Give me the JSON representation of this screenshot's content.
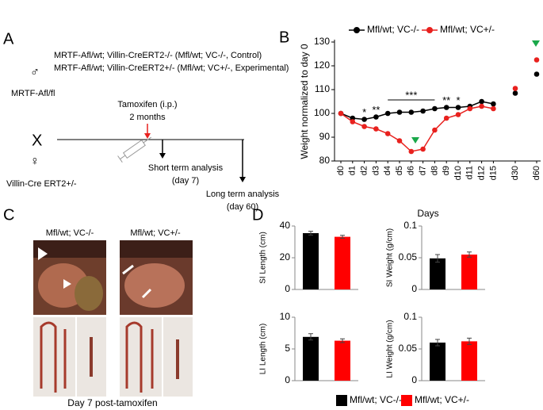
{
  "panel_labels": [
    "A",
    "B",
    "C",
    "D"
  ],
  "panel_a": {
    "cross_lines": [
      {
        "text": "MRTF-Afl/wt; Villin-CreERT2-/- (Mfl/wt; VC-/-, Control)",
        "color": "#000000"
      },
      {
        "text": "MRTF-Afl/wt; Villin-CreERT2+/- (Mfl/wt; VC+/-, Experimental)",
        "color": "#e8211e"
      }
    ],
    "male_symbol": "♂",
    "female_symbol": "♀",
    "male_parent": "MRTF-Afl/fl",
    "cross": "X",
    "female_parent": "Villin-Cre ERT2+/-",
    "treatment": [
      "Tamoxifen (i.p.)",
      "2 months"
    ],
    "short_term": [
      "Short term analysis",
      "(day 7)"
    ],
    "long_term": [
      "Long term analysis",
      "(day 60)"
    ]
  },
  "panel_c": {
    "headers": [
      {
        "text": "Mfl/wt; VC-/-",
        "color": "#000000"
      },
      {
        "text": "Mfl/wt; VC+/-",
        "color": "#e8211e"
      }
    ],
    "caption": "Day 7 post-tamoxifen"
  },
  "panel_d_legend": [
    {
      "text": "Mfl/wt; VC-/-",
      "color": "#000000"
    },
    {
      "text": "Mfl/wt; VC+/-",
      "color": "#ff0000"
    }
  ],
  "chart_data": [
    {
      "type": "line",
      "xlabel": "Days",
      "ylabel": "Weight normalized to day 0",
      "categories": [
        "d0",
        "d1",
        "d2",
        "d3",
        "d4",
        "d5",
        "d6",
        "d7",
        "d8",
        "d9",
        "d10",
        "d11",
        "d12",
        "d15",
        "d30",
        "d60"
      ],
      "line_end": "d15",
      "series": [
        {
          "name": "Mfl/wt; VC-/-",
          "color": "#000000",
          "values": [
            100,
            98,
            97.5,
            98.5,
            100,
            100.5,
            100.5,
            101,
            102,
            102.5,
            102.5,
            103,
            105,
            104,
            108.5,
            116.5
          ]
        },
        {
          "name": "Mfl/wt; VC+/-",
          "color": "#e8211e",
          "values": [
            100,
            96.5,
            94.5,
            93.5,
            91.5,
            88.5,
            84,
            85,
            93,
            98,
            99.5,
            102,
            103,
            102,
            110.5,
            122.5
          ]
        }
      ],
      "annotations": [
        {
          "text": "*",
          "from": "d2",
          "to": "d2"
        },
        {
          "text": "**",
          "from": "d3",
          "to": "d3"
        },
        {
          "text": "***",
          "from": "d4",
          "to": "d8"
        },
        {
          "text": "**",
          "from": "d9",
          "to": "d9"
        },
        {
          "text": "*",
          "from": "d10",
          "to": "d10"
        }
      ],
      "ylim": [
        80,
        130
      ],
      "yticks": [
        80,
        90,
        100,
        110,
        120,
        130
      ]
    },
    {
      "type": "bar",
      "ylabel": "SI Length (cm)",
      "values": [
        35.5,
        33.2
      ],
      "errors": [
        1.2,
        0.9
      ],
      "colors": [
        "#000000",
        "#ff0000"
      ],
      "ylim": [
        0,
        40
      ],
      "yticks": [
        0,
        20,
        40
      ]
    },
    {
      "type": "bar",
      "ylabel": "SI Weight (g/cm)",
      "values": [
        0.049,
        0.055
      ],
      "errors": [
        0.006,
        0.004
      ],
      "colors": [
        "#000000",
        "#ff0000"
      ],
      "ylim": [
        0,
        0.1
      ],
      "yticks": [
        0,
        0.05,
        0.1
      ]
    },
    {
      "type": "bar",
      "ylabel": "LI Length (cm)",
      "values": [
        6.9,
        6.3
      ],
      "errors": [
        0.5,
        0.3
      ],
      "colors": [
        "#000000",
        "#ff0000"
      ],
      "ylim": [
        0,
        10
      ],
      "yticks": [
        0,
        5,
        10
      ]
    },
    {
      "type": "bar",
      "ylabel": "LI Weight (g/cm)",
      "values": [
        0.06,
        0.062
      ],
      "errors": [
        0.005,
        0.005
      ],
      "colors": [
        "#000000",
        "#ff0000"
      ],
      "ylim": [
        0,
        0.1
      ],
      "yticks": [
        0,
        0.05,
        0.1
      ]
    }
  ]
}
